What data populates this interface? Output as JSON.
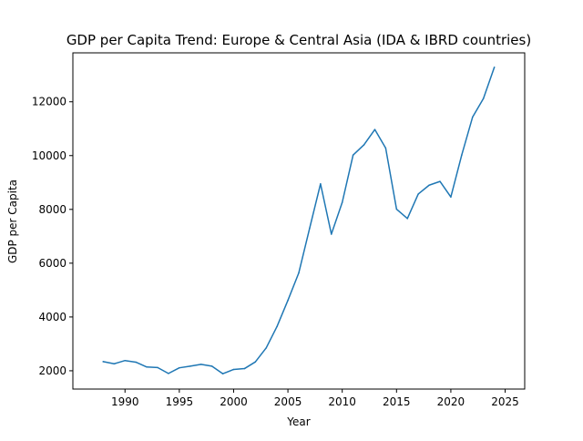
{
  "chart_data": {
    "type": "line",
    "title": "GDP per Capita Trend: Europe & Central Asia (IDA & IBRD countries)",
    "xlabel": "Year",
    "ylabel": "GDP per Capita",
    "xlim": [
      1985.2,
      2026.8
    ],
    "ylim": [
      1320,
      13820
    ],
    "xticks": [
      1990,
      1995,
      2000,
      2005,
      2010,
      2015,
      2020,
      2025
    ],
    "yticks": [
      2000,
      4000,
      6000,
      8000,
      10000,
      12000
    ],
    "grid": false,
    "line_color": "#1f77b4",
    "x": [
      1988,
      1989,
      1990,
      1991,
      1992,
      1993,
      1994,
      1995,
      1996,
      1997,
      1998,
      1999,
      2000,
      2001,
      2002,
      2003,
      2004,
      2005,
      2006,
      2007,
      2008,
      2009,
      2010,
      2011,
      2012,
      2013,
      2014,
      2015,
      2016,
      2017,
      2018,
      2019,
      2020,
      2021,
      2022,
      2023,
      2024
    ],
    "y": [
      2340,
      2260,
      2380,
      2320,
      2140,
      2120,
      1900,
      2110,
      2170,
      2240,
      2170,
      1890,
      2050,
      2080,
      2330,
      2850,
      3650,
      4620,
      5640,
      7300,
      8950,
      7080,
      8260,
      10020,
      10400,
      10970,
      10280,
      8010,
      7660,
      8570,
      8900,
      9040,
      8460,
      10020,
      11430,
      12120,
      13280
    ]
  }
}
